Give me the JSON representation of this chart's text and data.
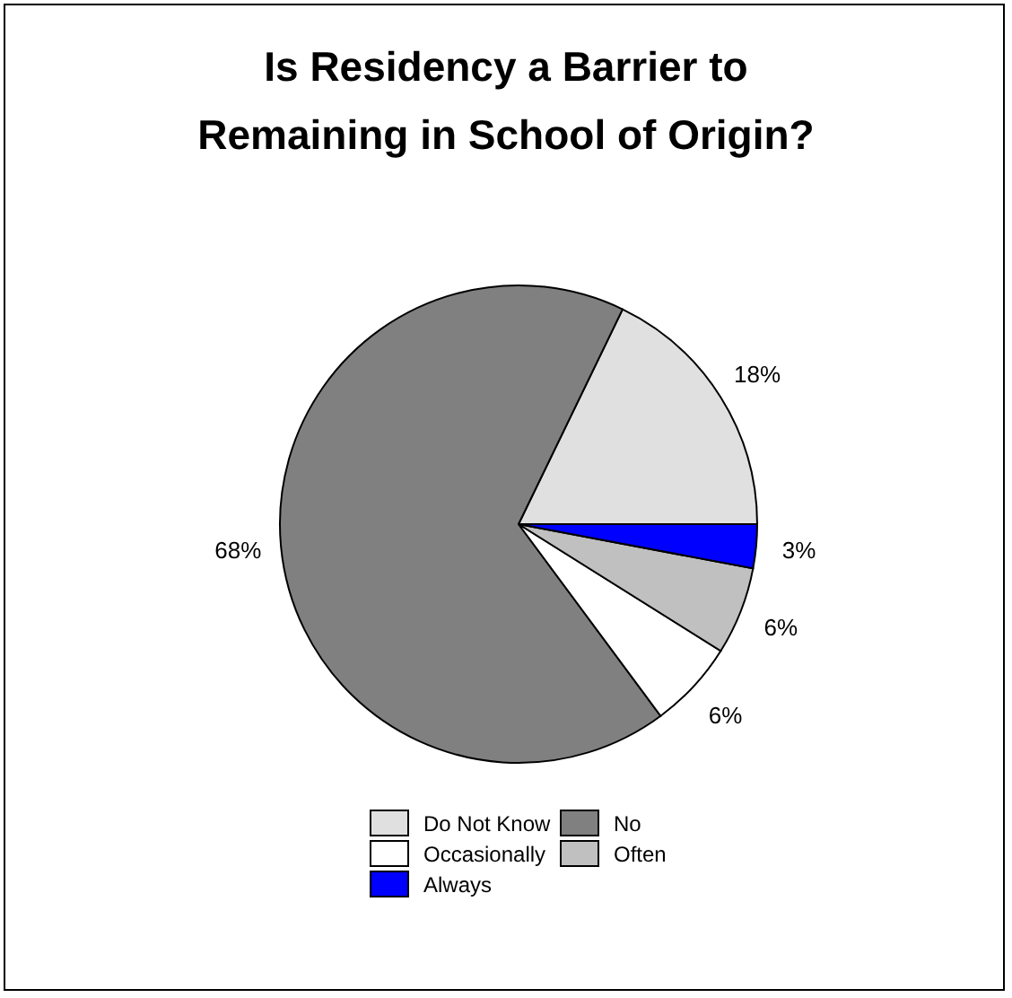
{
  "chart_data": {
    "type": "pie",
    "title": "Is Residency a Barrier to Remaining in School of Origin?",
    "categories": [
      "Do Not Know",
      "No",
      "Occasionally",
      "Often",
      "Always"
    ],
    "values": [
      18,
      68,
      6,
      6,
      3
    ],
    "colors": [
      "#e0e0e0",
      "#808080",
      "#ffffff",
      "#c0c0c0",
      "#0000ff"
    ],
    "legend": "bottom",
    "value_labels": [
      "18%",
      "68%",
      "6%",
      "6%",
      "3%"
    ]
  }
}
